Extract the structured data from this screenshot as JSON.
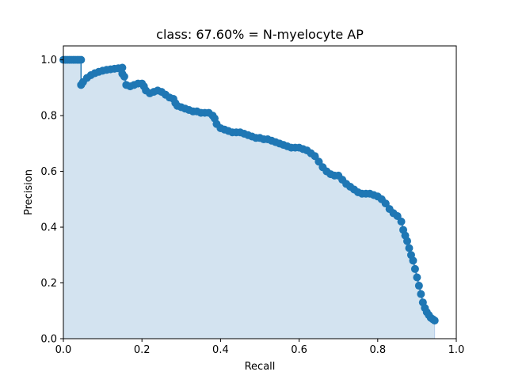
{
  "chart_data": {
    "type": "area",
    "title": "class: 67.60% = N-myelocyte AP",
    "xlabel": "Recall",
    "ylabel": "Precision",
    "xlim": [
      0.0,
      1.0
    ],
    "ylim": [
      0.0,
      1.05
    ],
    "xticks": [
      0.0,
      0.2,
      0.4,
      0.6,
      0.8,
      1.0
    ],
    "xtick_labels": [
      "0.0",
      "0.2",
      "0.4",
      "0.6",
      "0.8",
      "1.0"
    ],
    "yticks": [
      0.0,
      0.2,
      0.4,
      0.6,
      0.8,
      1.0
    ],
    "ytick_labels": [
      "0.0",
      "0.2",
      "0.4",
      "0.6",
      "0.8",
      "1.0"
    ],
    "grid": false,
    "legend": "none",
    "colors": {
      "points": "#1f77b4",
      "fill": "#d3e3f0",
      "fill_edge": "#aec7e8"
    },
    "series": [
      {
        "x": [
          0.0,
          0.005,
          0.01,
          0.015,
          0.02,
          0.025,
          0.03,
          0.035,
          0.04,
          0.045,
          0.045,
          0.05,
          0.06,
          0.07,
          0.08,
          0.09,
          0.1,
          0.11,
          0.12,
          0.13,
          0.14,
          0.15,
          0.15,
          0.155,
          0.16,
          0.17,
          0.18,
          0.19,
          0.2,
          0.205,
          0.21,
          0.22,
          0.23,
          0.24,
          0.25,
          0.26,
          0.27,
          0.28,
          0.285,
          0.29,
          0.3,
          0.31,
          0.32,
          0.33,
          0.34,
          0.35,
          0.36,
          0.37,
          0.38,
          0.385,
          0.39,
          0.4,
          0.41,
          0.42,
          0.43,
          0.44,
          0.45,
          0.46,
          0.47,
          0.48,
          0.49,
          0.5,
          0.51,
          0.52,
          0.53,
          0.54,
          0.55,
          0.56,
          0.57,
          0.58,
          0.59,
          0.6,
          0.61,
          0.62,
          0.63,
          0.64,
          0.65,
          0.66,
          0.67,
          0.68,
          0.69,
          0.7,
          0.71,
          0.72,
          0.73,
          0.74,
          0.75,
          0.76,
          0.77,
          0.78,
          0.79,
          0.8,
          0.81,
          0.82,
          0.83,
          0.84,
          0.85,
          0.86,
          0.865,
          0.87,
          0.875,
          0.88,
          0.885,
          0.89,
          0.895,
          0.9,
          0.905,
          0.91,
          0.915,
          0.92,
          0.925,
          0.93,
          0.935,
          0.94,
          0.945
        ],
        "y": [
          1.0,
          1.0,
          1.0,
          1.0,
          1.0,
          1.0,
          1.0,
          1.0,
          1.0,
          1.0,
          0.91,
          0.92,
          0.935,
          0.945,
          0.952,
          0.957,
          0.961,
          0.964,
          0.966,
          0.968,
          0.97,
          0.972,
          0.95,
          0.94,
          0.91,
          0.905,
          0.91,
          0.915,
          0.915,
          0.905,
          0.89,
          0.88,
          0.885,
          0.89,
          0.885,
          0.875,
          0.865,
          0.86,
          0.845,
          0.835,
          0.83,
          0.825,
          0.82,
          0.815,
          0.815,
          0.81,
          0.81,
          0.81,
          0.8,
          0.79,
          0.77,
          0.755,
          0.75,
          0.745,
          0.74,
          0.74,
          0.74,
          0.735,
          0.73,
          0.725,
          0.72,
          0.72,
          0.715,
          0.715,
          0.71,
          0.705,
          0.7,
          0.695,
          0.69,
          0.685,
          0.685,
          0.685,
          0.68,
          0.675,
          0.665,
          0.655,
          0.635,
          0.615,
          0.6,
          0.59,
          0.585,
          0.585,
          0.57,
          0.555,
          0.545,
          0.535,
          0.525,
          0.52,
          0.52,
          0.52,
          0.515,
          0.51,
          0.5,
          0.485,
          0.465,
          0.45,
          0.44,
          0.42,
          0.39,
          0.37,
          0.35,
          0.325,
          0.3,
          0.28,
          0.25,
          0.22,
          0.19,
          0.16,
          0.13,
          0.11,
          0.095,
          0.085,
          0.075,
          0.07,
          0.065
        ]
      }
    ]
  }
}
